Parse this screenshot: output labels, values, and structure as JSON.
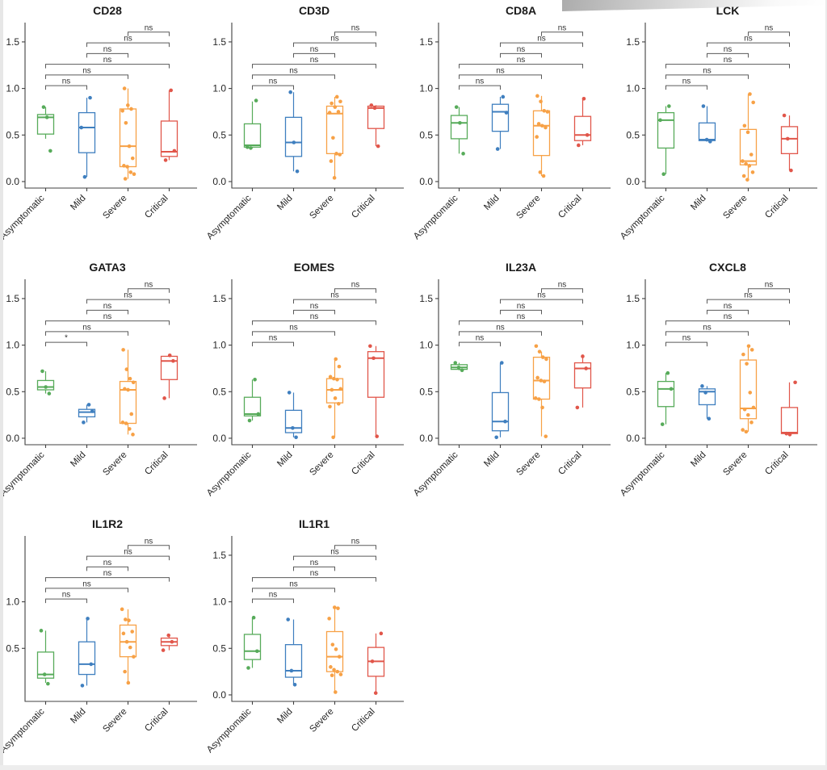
{
  "chart_data": {
    "type": "boxplot-grid",
    "description": "Faceted gene-expression boxplots with overlaid jittered points and pairwise significance brackets",
    "groups": [
      "Asymptomatic",
      "Mild",
      "Severe",
      "Critical"
    ],
    "group_colors": [
      "#57ab5a",
      "#3f7fbf",
      "#f7a146",
      "#e1564a"
    ],
    "axis_colors": {
      "axis_line": "#404040",
      "tick_label": "#262626",
      "bracket": "#5a5a5a",
      "bracket_label": "#333333",
      "title": "#1a1a1a"
    },
    "ylim": [
      -0.035,
      1.69
    ],
    "grid": "off",
    "comparison_pairs": [
      [
        "Asymptomatic",
        "Mild"
      ],
      [
        "Asymptomatic",
        "Severe"
      ],
      [
        "Asymptomatic",
        "Critical"
      ],
      [
        "Mild",
        "Severe"
      ],
      [
        "Mild",
        "Critical"
      ],
      [
        "Severe",
        "Critical"
      ]
    ],
    "panels": [
      {
        "title": "CD28",
        "yticks": [
          0.0,
          0.5,
          1.0,
          1.5
        ],
        "significance": [
          "ns",
          "ns",
          "ns",
          "ns",
          "ns",
          "ns"
        ],
        "boxes": [
          {
            "group": "Asymptomatic",
            "whisker_low": 0.46,
            "q1": 0.51,
            "median": 0.69,
            "q3": 0.72,
            "whisker_high": 0.8,
            "points": [
              0.8,
              0.69,
              0.33
            ]
          },
          {
            "group": "Mild",
            "whisker_low": 0.05,
            "q1": 0.31,
            "median": 0.58,
            "q3": 0.74,
            "whisker_high": 0.9,
            "points": [
              0.9,
              0.58,
              0.05
            ]
          },
          {
            "group": "Severe",
            "whisker_low": 0.03,
            "q1": 0.16,
            "median": 0.38,
            "q3": 0.78,
            "whisker_high": 1.0,
            "points": [
              1.0,
              0.82,
              0.78,
              0.76,
              0.63,
              0.38,
              0.25,
              0.17,
              0.16,
              0.1,
              0.08,
              0.03
            ]
          },
          {
            "group": "Critical",
            "whisker_low": 0.23,
            "q1": 0.27,
            "median": 0.32,
            "q3": 0.65,
            "whisker_high": 0.98,
            "points": [
              0.98,
              0.33,
              0.23
            ]
          }
        ]
      },
      {
        "title": "CD3D",
        "yticks": [
          0.0,
          0.5,
          1.0,
          1.5
        ],
        "significance": [
          "ns",
          "ns",
          "ns",
          "ns",
          "ns",
          "ns"
        ],
        "boxes": [
          {
            "group": "Asymptomatic",
            "whisker_low": 0.36,
            "q1": 0.37,
            "median": 0.39,
            "q3": 0.62,
            "whisker_high": 0.86,
            "points": [
              0.87,
              0.37,
              0.36
            ]
          },
          {
            "group": "Mild",
            "whisker_low": 0.11,
            "q1": 0.27,
            "median": 0.42,
            "q3": 0.69,
            "whisker_high": 0.96,
            "points": [
              0.96,
              0.42,
              0.11
            ]
          },
          {
            "group": "Severe",
            "whisker_low": 0.04,
            "q1": 0.3,
            "median": 0.73,
            "q3": 0.81,
            "whisker_high": 0.91,
            "points": [
              0.91,
              0.86,
              0.84,
              0.8,
              0.75,
              0.74,
              0.47,
              0.3,
              0.29,
              0.22,
              0.04
            ]
          },
          {
            "group": "Critical",
            "whisker_low": 0.38,
            "q1": 0.57,
            "median": 0.79,
            "q3": 0.81,
            "whisker_high": 0.82,
            "points": [
              0.82,
              0.79,
              0.38
            ]
          }
        ]
      },
      {
        "title": "CD8A",
        "yticks": [
          0.0,
          0.5,
          1.0,
          1.5
        ],
        "significance": [
          "ns",
          "ns",
          "ns",
          "ns",
          "ns",
          "ns"
        ],
        "boxes": [
          {
            "group": "Asymptomatic",
            "whisker_low": 0.3,
            "q1": 0.46,
            "median": 0.63,
            "q3": 0.71,
            "whisker_high": 0.8,
            "points": [
              0.8,
              0.63,
              0.3
            ]
          },
          {
            "group": "Mild",
            "whisker_low": 0.35,
            "q1": 0.54,
            "median": 0.75,
            "q3": 0.83,
            "whisker_high": 0.91,
            "points": [
              0.91,
              0.74,
              0.35
            ]
          },
          {
            "group": "Severe",
            "whisker_low": 0.06,
            "q1": 0.28,
            "median": 0.6,
            "q3": 0.76,
            "whisker_high": 0.92,
            "points": [
              0.92,
              0.86,
              0.76,
              0.75,
              0.62,
              0.6,
              0.58,
              0.48,
              0.1,
              0.06
            ]
          },
          {
            "group": "Critical",
            "whisker_low": 0.39,
            "q1": 0.44,
            "median": 0.5,
            "q3": 0.7,
            "whisker_high": 0.89,
            "points": [
              0.89,
              0.5,
              0.39
            ]
          }
        ]
      },
      {
        "title": "LCK",
        "yticks": [
          0.0,
          0.5,
          1.0,
          1.5
        ],
        "significance": [
          "ns",
          "ns",
          "ns",
          "ns",
          "ns",
          "ns"
        ],
        "boxes": [
          {
            "group": "Asymptomatic",
            "whisker_low": 0.08,
            "q1": 0.36,
            "median": 0.66,
            "q3": 0.74,
            "whisker_high": 0.81,
            "points": [
              0.81,
              0.66,
              0.08
            ]
          },
          {
            "group": "Mild",
            "whisker_low": 0.43,
            "q1": 0.44,
            "median": 0.45,
            "q3": 0.63,
            "whisker_high": 0.81,
            "points": [
              0.81,
              0.45,
              0.43
            ]
          },
          {
            "group": "Severe",
            "whisker_low": 0.02,
            "q1": 0.18,
            "median": 0.22,
            "q3": 0.56,
            "whisker_high": 0.94,
            "points": [
              0.94,
              0.85,
              0.6,
              0.53,
              0.29,
              0.22,
              0.19,
              0.17,
              0.1,
              0.06,
              0.02
            ]
          },
          {
            "group": "Critical",
            "whisker_low": 0.12,
            "q1": 0.3,
            "median": 0.46,
            "q3": 0.59,
            "whisker_high": 0.71,
            "points": [
              0.71,
              0.46,
              0.12
            ]
          }
        ]
      },
      {
        "title": "GATA3",
        "yticks": [
          0.0,
          0.5,
          1.0,
          1.5
        ],
        "significance": [
          "*",
          "ns",
          "ns",
          "ns",
          "ns",
          "ns"
        ],
        "boxes": [
          {
            "group": "Asymptomatic",
            "whisker_low": 0.48,
            "q1": 0.52,
            "median": 0.55,
            "q3": 0.62,
            "whisker_high": 0.72,
            "points": [
              0.72,
              0.55,
              0.48
            ]
          },
          {
            "group": "Mild",
            "whisker_low": 0.17,
            "q1": 0.23,
            "median": 0.28,
            "q3": 0.31,
            "whisker_high": 0.36,
            "points": [
              0.36,
              0.29,
              0.17
            ]
          },
          {
            "group": "Severe",
            "whisker_low": 0.04,
            "q1": 0.16,
            "median": 0.52,
            "q3": 0.61,
            "whisker_high": 0.95,
            "points": [
              0.95,
              0.74,
              0.64,
              0.6,
              0.53,
              0.52,
              0.26,
              0.17,
              0.16,
              0.1,
              0.04
            ]
          },
          {
            "group": "Critical",
            "whisker_low": 0.43,
            "q1": 0.63,
            "median": 0.83,
            "q3": 0.88,
            "whisker_high": 0.89,
            "points": [
              0.89,
              0.83,
              0.43
            ]
          }
        ]
      },
      {
        "title": "EOMES",
        "yticks": [
          0.0,
          0.5,
          1.0,
          1.5
        ],
        "significance": [
          "ns",
          "ns",
          "ns",
          "ns",
          "ns",
          "ns"
        ],
        "boxes": [
          {
            "group": "Asymptomatic",
            "whisker_low": 0.19,
            "q1": 0.24,
            "median": 0.26,
            "q3": 0.44,
            "whisker_high": 0.63,
            "points": [
              0.63,
              0.26,
              0.19
            ]
          },
          {
            "group": "Mild",
            "whisker_low": 0.01,
            "q1": 0.06,
            "median": 0.11,
            "q3": 0.3,
            "whisker_high": 0.49,
            "points": [
              0.49,
              0.11,
              0.01
            ]
          },
          {
            "group": "Severe",
            "whisker_low": 0.01,
            "q1": 0.38,
            "median": 0.52,
            "q3": 0.64,
            "whisker_high": 0.85,
            "points": [
              0.85,
              0.77,
              0.66,
              0.64,
              0.63,
              0.53,
              0.52,
              0.43,
              0.37,
              0.34,
              0.01
            ]
          },
          {
            "group": "Critical",
            "whisker_low": 0.02,
            "q1": 0.44,
            "median": 0.86,
            "q3": 0.93,
            "whisker_high": 0.99,
            "points": [
              0.99,
              0.86,
              0.02
            ]
          }
        ]
      },
      {
        "title": "IL23A",
        "yticks": [
          0.0,
          0.5,
          1.0,
          1.5
        ],
        "significance": [
          "ns",
          "ns",
          "ns",
          "ns",
          "ns",
          "ns"
        ],
        "boxes": [
          {
            "group": "Asymptomatic",
            "whisker_low": 0.73,
            "q1": 0.74,
            "median": 0.76,
            "q3": 0.79,
            "whisker_high": 0.81,
            "points": [
              0.81,
              0.76,
              0.73
            ]
          },
          {
            "group": "Mild",
            "whisker_low": 0.01,
            "q1": 0.08,
            "median": 0.18,
            "q3": 0.49,
            "whisker_high": 0.81,
            "points": [
              0.81,
              0.18,
              0.01
            ]
          },
          {
            "group": "Severe",
            "whisker_low": 0.02,
            "q1": 0.42,
            "median": 0.62,
            "q3": 0.87,
            "whisker_high": 0.93,
            "points": [
              0.99,
              0.93,
              0.87,
              0.85,
              0.65,
              0.62,
              0.61,
              0.43,
              0.42,
              0.33,
              0.02
            ]
          },
          {
            "group": "Critical",
            "whisker_low": 0.33,
            "q1": 0.54,
            "median": 0.75,
            "q3": 0.81,
            "whisker_high": 0.88,
            "points": [
              0.88,
              0.75,
              0.33
            ]
          }
        ]
      },
      {
        "title": "CXCL8",
        "yticks": [
          0.0,
          0.5,
          1.0,
          1.5
        ],
        "significance": [
          "ns",
          "ns",
          "ns",
          "ns",
          "ns",
          "ns"
        ],
        "boxes": [
          {
            "group": "Asymptomatic",
            "whisker_low": 0.15,
            "q1": 0.34,
            "median": 0.53,
            "q3": 0.61,
            "whisker_high": 0.7,
            "points": [
              0.7,
              0.53,
              0.15
            ]
          },
          {
            "group": "Mild",
            "whisker_low": 0.21,
            "q1": 0.36,
            "median": 0.5,
            "q3": 0.53,
            "whisker_high": 0.56,
            "points": [
              0.56,
              0.49,
              0.21
            ]
          },
          {
            "group": "Severe",
            "whisker_low": 0.07,
            "q1": 0.21,
            "median": 0.32,
            "q3": 0.84,
            "whisker_high": 0.99,
            "points": [
              0.99,
              0.95,
              0.9,
              0.8,
              0.49,
              0.33,
              0.31,
              0.25,
              0.17,
              0.09,
              0.07
            ]
          },
          {
            "group": "Critical",
            "whisker_low": 0.04,
            "q1": 0.05,
            "median": 0.06,
            "q3": 0.33,
            "whisker_high": 0.6,
            "points": [
              0.6,
              0.05,
              0.04
            ]
          }
        ]
      },
      {
        "title": "IL1R2",
        "yticks": [
          0.5,
          1.0
        ],
        "significance": [
          "ns",
          "ns",
          "ns",
          "ns",
          "ns",
          "ns"
        ],
        "boxes": [
          {
            "group": "Asymptomatic",
            "whisker_low": 0.13,
            "q1": 0.18,
            "median": 0.22,
            "q3": 0.46,
            "whisker_high": 0.69,
            "points": [
              0.69,
              0.22,
              0.12
            ]
          },
          {
            "group": "Mild",
            "whisker_low": 0.1,
            "q1": 0.22,
            "median": 0.33,
            "q3": 0.57,
            "whisker_high": 0.81,
            "points": [
              0.82,
              0.33,
              0.1
            ]
          },
          {
            "group": "Severe",
            "whisker_low": 0.12,
            "q1": 0.41,
            "median": 0.57,
            "q3": 0.75,
            "whisker_high": 0.92,
            "points": [
              0.92,
              0.81,
              0.8,
              0.68,
              0.66,
              0.57,
              0.51,
              0.41,
              0.25,
              0.13
            ]
          },
          {
            "group": "Critical",
            "whisker_low": 0.48,
            "q1": 0.53,
            "median": 0.57,
            "q3": 0.61,
            "whisker_high": 0.64,
            "points": [
              0.64,
              0.57,
              0.48
            ]
          }
        ]
      },
      {
        "title": "IL1R1",
        "yticks": [
          0.0,
          0.5,
          1.0,
          1.5
        ],
        "significance": [
          "ns",
          "ns",
          "ns",
          "ns",
          "ns",
          "ns"
        ],
        "boxes": [
          {
            "group": "Asymptomatic",
            "whisker_low": 0.29,
            "q1": 0.38,
            "median": 0.47,
            "q3": 0.65,
            "whisker_high": 0.83,
            "points": [
              0.83,
              0.47,
              0.29
            ]
          },
          {
            "group": "Mild",
            "whisker_low": 0.11,
            "q1": 0.19,
            "median": 0.26,
            "q3": 0.54,
            "whisker_high": 0.81,
            "points": [
              0.81,
              0.26,
              0.11
            ]
          },
          {
            "group": "Severe",
            "whisker_low": 0.03,
            "q1": 0.25,
            "median": 0.41,
            "q3": 0.68,
            "whisker_high": 0.93,
            "points": [
              0.94,
              0.93,
              0.82,
              0.54,
              0.49,
              0.41,
              0.3,
              0.27,
              0.25,
              0.22,
              0.21,
              0.03
            ]
          },
          {
            "group": "Critical",
            "whisker_low": 0.02,
            "q1": 0.2,
            "median": 0.36,
            "q3": 0.51,
            "whisker_high": 0.66,
            "points": [
              0.66,
              0.36,
              0.02
            ]
          }
        ]
      }
    ]
  }
}
